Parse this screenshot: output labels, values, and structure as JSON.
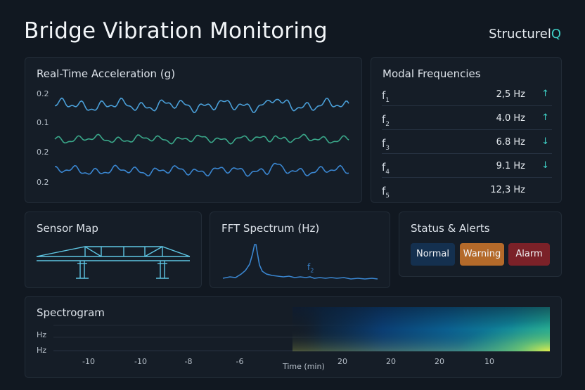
{
  "header": {
    "title": "Bridge Vibration Monitoring",
    "brand_main": "Structurel",
    "brand_accent": "Q"
  },
  "acceleration": {
    "title": "Real-Time Acceleration (g)",
    "y_labels": [
      "0.2",
      "0.1",
      "0.2",
      "0.2"
    ],
    "series_colors": [
      "#4a9fd8",
      "#3aa88a",
      "#3a86d0"
    ]
  },
  "modal": {
    "title": "Modal Frequencies",
    "rows": [
      {
        "symbol": "f",
        "sub": "1",
        "value": "2,5 Hz",
        "trend": "up"
      },
      {
        "symbol": "f",
        "sub": "2",
        "value": "4.0 Hz",
        "trend": "up"
      },
      {
        "symbol": "f",
        "sub": "3",
        "value": "6.8 Hz",
        "trend": "down"
      },
      {
        "symbol": "f",
        "sub": "4",
        "value": "9.1 Hz",
        "trend": "down"
      },
      {
        "symbol": "f",
        "sub": "5",
        "value": "12,3 Hz",
        "trend": "none"
      }
    ]
  },
  "sensor_map": {
    "title": "Sensor Map"
  },
  "fft": {
    "title": "FFT Spectrum (Hz)",
    "peak_label": "f",
    "peak_sub": "2"
  },
  "status": {
    "title": "Status & Alerts",
    "normal": "Normal",
    "warning": "Warning",
    "alarm": "Alarm",
    "colors": {
      "normal": "#14304f",
      "warning": "#b46a2a",
      "alarm": "#7b2128"
    }
  },
  "spectrogram": {
    "title": "Spectrogram",
    "y_labels": [
      "Hz",
      "Hz"
    ],
    "x_ticks": [
      "-10",
      "-10",
      "-8",
      "-6",
      "20",
      "20",
      "20",
      "10"
    ],
    "x_label": "Time (min)"
  }
}
